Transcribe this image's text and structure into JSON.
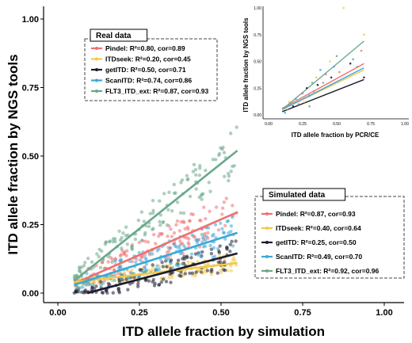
{
  "chart_data": [
    {
      "type": "scatter",
      "xlabel": "ITD allele fraction by simulation",
      "ylabel": "ITD allele fraction by NGS tools",
      "xlim": [
        0,
        1
      ],
      "ylim": [
        0,
        1
      ],
      "x_ticks": [
        "0.00",
        "0.25",
        "0.50",
        "0.75",
        "1.00"
      ],
      "y_ticks": [
        "0.00",
        "0.25",
        "0.50",
        "0.75",
        "1.00"
      ],
      "x_range": [
        0.05,
        0.55
      ],
      "grid": false,
      "regression_lines": true,
      "series": [
        {
          "name": "Pindel",
          "color": "#f07070",
          "line": [
            [
              0.05,
              0.035
            ],
            [
              0.55,
              0.295
            ]
          ]
        },
        {
          "name": "ITDseek",
          "color": "#f2c84b",
          "line": [
            [
              0.05,
              0.04
            ],
            [
              0.55,
              0.11
            ]
          ]
        },
        {
          "name": "getITD",
          "color": "#1c1c30",
          "line": [
            [
              0.09,
              0.0
            ],
            [
              0.55,
              0.145
            ]
          ]
        },
        {
          "name": "ScanITD",
          "color": "#3aa8d8",
          "line": [
            [
              0.05,
              0.03
            ],
            [
              0.55,
              0.22
            ]
          ]
        },
        {
          "name": "FLT3_ITD_ext",
          "color": "#6aa88a",
          "line": [
            [
              0.05,
              0.045
            ],
            [
              0.55,
              0.52
            ]
          ]
        }
      ],
      "legend": {
        "title": "Simulated data",
        "placement": "bottom-right",
        "entries": [
          "Pindel: R²=0.87, cor=0.93",
          "ITDseek: R²=0.40, cor=0.64",
          "getITD: R²=0.25, cor=0.50",
          "ScanITD: R²=0.49, cor=0.70",
          "FLT3_ITD_ext: R²=0.92, cor=0.96"
        ]
      }
    },
    {
      "type": "scatter",
      "xlabel": "ITD allele fraction by PCR/CE",
      "ylabel": "ITD allele fraction by NGS tools",
      "xlim": [
        0,
        1
      ],
      "ylim": [
        0,
        1
      ],
      "x_ticks": [
        "0.00",
        "0.25",
        "0.50",
        "0.75",
        "1.00"
      ],
      "y_ticks": [
        "0.00",
        "0.25",
        "0.50",
        "0.75",
        "1.00"
      ],
      "grid": false,
      "regression_lines": true,
      "series": [
        {
          "name": "Pindel",
          "color": "#f07070",
          "line": [
            [
              0.1,
              0.06
            ],
            [
              0.7,
              0.48
            ]
          ]
        },
        {
          "name": "ITDseek",
          "color": "#f2c84b",
          "line": [
            [
              0.1,
              0.05
            ],
            [
              0.7,
              0.42
            ]
          ]
        },
        {
          "name": "getITD",
          "color": "#1c1c30",
          "line": [
            [
              0.1,
              0.03
            ],
            [
              0.7,
              0.33
            ]
          ]
        },
        {
          "name": "ScanITD",
          "color": "#3aa8d8",
          "line": [
            [
              0.1,
              0.05
            ],
            [
              0.7,
              0.44
            ]
          ]
        },
        {
          "name": "FLT3_ITD_ext",
          "color": "#6aa88a",
          "line": [
            [
              0.1,
              0.05
            ],
            [
              0.7,
              0.69
            ]
          ]
        }
      ],
      "points": [
        [
          0.14,
          0.05
        ],
        [
          0.15,
          0.12
        ],
        [
          0.18,
          0.08
        ],
        [
          0.2,
          0.15
        ],
        [
          0.22,
          0.1
        ],
        [
          0.25,
          0.2
        ],
        [
          0.26,
          0.12
        ],
        [
          0.28,
          0.25
        ],
        [
          0.3,
          0.18
        ],
        [
          0.32,
          0.3
        ],
        [
          0.33,
          0.22
        ],
        [
          0.35,
          0.35
        ],
        [
          0.36,
          0.28
        ],
        [
          0.38,
          0.42
        ],
        [
          0.4,
          0.3
        ],
        [
          0.42,
          0.38
        ],
        [
          0.45,
          0.5
        ],
        [
          0.46,
          0.35
        ],
        [
          0.48,
          0.45
        ],
        [
          0.5,
          0.55
        ],
        [
          0.52,
          0.4
        ],
        [
          0.55,
          1.0
        ],
        [
          0.6,
          0.48
        ],
        [
          0.62,
          0.52
        ],
        [
          0.65,
          0.45
        ],
        [
          0.68,
          0.6
        ],
        [
          0.7,
          0.75
        ],
        [
          0.7,
          0.35
        ],
        [
          0.12,
          0.02
        ],
        [
          0.3,
          0.08
        ]
      ],
      "legend": {
        "title": "Real data",
        "placement": "top-left",
        "entries": [
          "Pindel: R²=0.80, cor=0.89",
          "ITDseek: R²=0.20, cor=0.45",
          "getITD: R²=0.50, cor=0.71",
          "ScanITD: R²=0.74, cor=0.86",
          "FLT3_ITD_ext: R²=0.87, cor=0.93"
        ]
      }
    }
  ]
}
